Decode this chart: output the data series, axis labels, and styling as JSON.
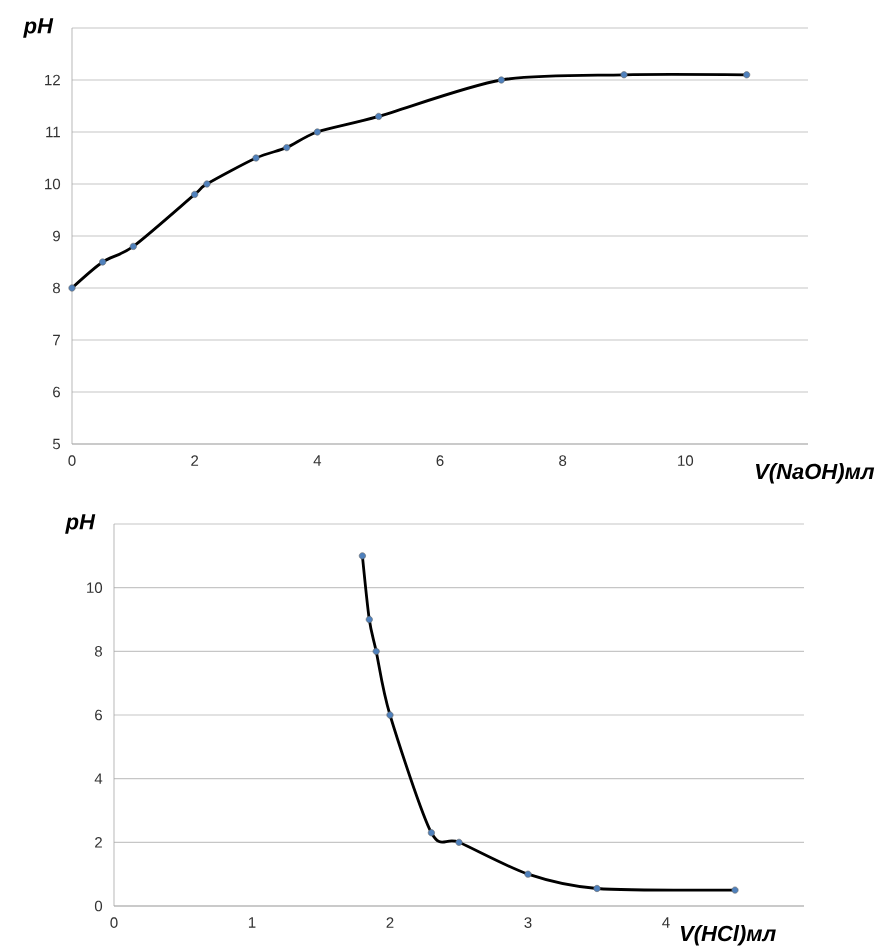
{
  "chart_data": [
    {
      "type": "line",
      "xlabel": "V(NaOH)мл",
      "ylabel": "pH",
      "xlim": [
        0,
        12
      ],
      "xticks": [
        0,
        2,
        4,
        6,
        8,
        10
      ],
      "ylim": [
        5,
        13
      ],
      "yticks": [
        5,
        6,
        7,
        8,
        9,
        10,
        11,
        12,
        {
          "value": 13,
          "label": null
        }
      ],
      "grid": "y",
      "marker": "circle",
      "line_style": "solid",
      "series": [
        {
          "color": "#000000",
          "x": [
            0,
            0.5,
            1,
            2,
            2.2,
            3,
            3.5,
            4,
            5,
            7,
            9,
            11
          ],
          "values": [
            8,
            8.5,
            8.8,
            9.8,
            10,
            10.5,
            10.7,
            11,
            11.3,
            12,
            12.1,
            12.1
          ]
        }
      ]
    },
    {
      "type": "line",
      "xlabel": "V(HCl)мл",
      "ylabel": "pH",
      "xlim": [
        0,
        5
      ],
      "xticks": [
        0,
        1,
        2,
        3,
        4
      ],
      "ylim": [
        0,
        12
      ],
      "yticks": [
        0,
        2,
        4,
        6,
        8,
        10,
        {
          "value": 12,
          "label": null
        }
      ],
      "grid": "y",
      "marker": "circle",
      "line_style": "solid",
      "series": [
        {
          "color": "#000000",
          "x": [
            1.8,
            1.85,
            1.9,
            2,
            2.3,
            2.5,
            3,
            3.5,
            4.5
          ],
          "values": [
            11,
            9,
            8,
            6,
            2.3,
            2,
            1,
            0.55,
            0.5
          ]
        }
      ]
    }
  ]
}
